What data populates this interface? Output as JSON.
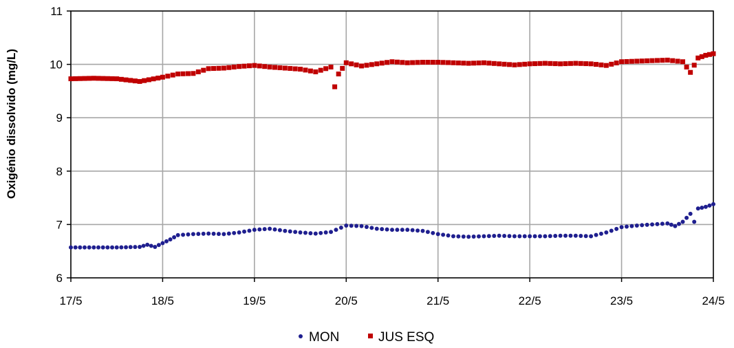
{
  "chart_data": {
    "type": "scatter",
    "ylabel": "Oxigénio dissolvido (mg/L)",
    "ylim": [
      6,
      11
    ],
    "yticks": [
      6,
      7,
      8,
      9,
      10,
      11
    ],
    "xlim": [
      "17/5",
      "24/5"
    ],
    "xticks": [
      "17/5",
      "18/5",
      "19/5",
      "20/5",
      "21/5",
      "22/5",
      "23/5",
      "24/5"
    ],
    "grid": true,
    "legend": "bottom",
    "series": [
      {
        "name": "MON",
        "color": "#1f1f8f",
        "marker": "circle",
        "points": [
          [
            "17/5 00:00",
            6.57
          ],
          [
            "17/5 06:00",
            6.57
          ],
          [
            "17/5 12:00",
            6.57
          ],
          [
            "17/5 18:00",
            6.58
          ],
          [
            "17/5 20:00",
            6.62
          ],
          [
            "17/5 22:00",
            6.58
          ],
          [
            "18/5 00:00",
            6.65
          ],
          [
            "18/5 02:00",
            6.72
          ],
          [
            "18/5 04:00",
            6.8
          ],
          [
            "18/5 08:00",
            6.82
          ],
          [
            "18/5 12:00",
            6.83
          ],
          [
            "18/5 16:00",
            6.82
          ],
          [
            "18/5 20:00",
            6.85
          ],
          [
            "19/5 00:00",
            6.9
          ],
          [
            "19/5 04:00",
            6.92
          ],
          [
            "19/5 08:00",
            6.88
          ],
          [
            "19/5 12:00",
            6.85
          ],
          [
            "19/5 16:00",
            6.83
          ],
          [
            "19/5 20:00",
            6.86
          ],
          [
            "20/5 00:00",
            6.98
          ],
          [
            "20/5 04:00",
            6.97
          ],
          [
            "20/5 08:00",
            6.92
          ],
          [
            "20/5 12:00",
            6.9
          ],
          [
            "20/5 16:00",
            6.9
          ],
          [
            "20/5 20:00",
            6.88
          ],
          [
            "21/5 00:00",
            6.82
          ],
          [
            "21/5 04:00",
            6.78
          ],
          [
            "21/5 08:00",
            6.77
          ],
          [
            "21/5 12:00",
            6.78
          ],
          [
            "21/5 16:00",
            6.79
          ],
          [
            "21/5 20:00",
            6.78
          ],
          [
            "22/5 00:00",
            6.78
          ],
          [
            "22/5 04:00",
            6.78
          ],
          [
            "22/5 08:00",
            6.79
          ],
          [
            "22/5 12:00",
            6.79
          ],
          [
            "22/5 16:00",
            6.78
          ],
          [
            "22/5 20:00",
            6.85
          ],
          [
            "23/5 00:00",
            6.95
          ],
          [
            "23/5 04:00",
            6.98
          ],
          [
            "23/5 08:00",
            7.0
          ],
          [
            "23/5 12:00",
            7.02
          ],
          [
            "23/5 14:00",
            6.97
          ],
          [
            "23/5 16:00",
            7.05
          ],
          [
            "23/5 18:00",
            7.2
          ],
          [
            "23/5 19:00",
            7.05
          ],
          [
            "23/5 20:00",
            7.3
          ],
          [
            "23/5 22:00",
            7.33
          ],
          [
            "24/5 00:00",
            7.38
          ]
        ]
      },
      {
        "name": "JUS ESQ",
        "color": "#c00000",
        "marker": "square",
        "points": [
          [
            "17/5 00:00",
            9.73
          ],
          [
            "17/5 06:00",
            9.74
          ],
          [
            "17/5 12:00",
            9.73
          ],
          [
            "17/5 18:00",
            9.68
          ],
          [
            "18/5 00:00",
            9.76
          ],
          [
            "18/5 04:00",
            9.82
          ],
          [
            "18/5 08:00",
            9.83
          ],
          [
            "18/5 12:00",
            9.92
          ],
          [
            "18/5 16:00",
            9.93
          ],
          [
            "18/5 20:00",
            9.96
          ],
          [
            "19/5 00:00",
            9.98
          ],
          [
            "19/5 04:00",
            9.95
          ],
          [
            "19/5 08:00",
            9.93
          ],
          [
            "19/5 12:00",
            9.91
          ],
          [
            "19/5 16:00",
            9.86
          ],
          [
            "19/5 20:00",
            9.95
          ],
          [
            "19/5 21:00",
            9.58
          ],
          [
            "19/5 22:00",
            9.82
          ],
          [
            "20/5 00:00",
            10.03
          ],
          [
            "20/5 04:00",
            9.97
          ],
          [
            "20/5 08:00",
            10.01
          ],
          [
            "20/5 12:00",
            10.05
          ],
          [
            "20/5 16:00",
            10.03
          ],
          [
            "20/5 20:00",
            10.04
          ],
          [
            "21/5 00:00",
            10.04
          ],
          [
            "21/5 04:00",
            10.03
          ],
          [
            "21/5 08:00",
            10.02
          ],
          [
            "21/5 12:00",
            10.03
          ],
          [
            "21/5 16:00",
            10.01
          ],
          [
            "21/5 20:00",
            9.99
          ],
          [
            "22/5 00:00",
            10.01
          ],
          [
            "22/5 04:00",
            10.02
          ],
          [
            "22/5 08:00",
            10.01
          ],
          [
            "22/5 12:00",
            10.02
          ],
          [
            "22/5 16:00",
            10.01
          ],
          [
            "22/5 20:00",
            9.98
          ],
          [
            "23/5 00:00",
            10.05
          ],
          [
            "23/5 04:00",
            10.06
          ],
          [
            "23/5 08:00",
            10.07
          ],
          [
            "23/5 12:00",
            10.08
          ],
          [
            "23/5 16:00",
            10.05
          ],
          [
            "23/5 18:00",
            9.85
          ],
          [
            "23/5 20:00",
            10.12
          ],
          [
            "23/5 22:00",
            10.17
          ],
          [
            "24/5 00:00",
            10.2
          ]
        ]
      }
    ]
  }
}
